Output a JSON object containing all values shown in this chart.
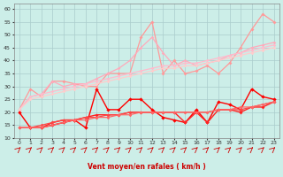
{
  "xlabel": "Vent moyen/en rafales ( km/h )",
  "xlim": [
    -0.5,
    23.5
  ],
  "ylim": [
    10,
    62
  ],
  "yticks": [
    10,
    15,
    20,
    25,
    30,
    35,
    40,
    45,
    50,
    55,
    60
  ],
  "xticks": [
    0,
    1,
    2,
    3,
    4,
    5,
    6,
    7,
    8,
    9,
    10,
    11,
    12,
    13,
    14,
    15,
    16,
    17,
    18,
    19,
    20,
    21,
    22,
    23
  ],
  "bg_color": "#cceee8",
  "grid_color": "#aacccc",
  "series": [
    {
      "x": [
        0,
        1,
        2,
        3,
        4,
        5,
        6,
        7,
        8,
        9,
        10,
        11,
        12,
        13,
        14,
        15,
        16,
        17,
        18,
        19,
        20,
        21,
        22,
        23
      ],
      "y": [
        21,
        29,
        26,
        32,
        32,
        31,
        30,
        30,
        35,
        35,
        35,
        49,
        55,
        35,
        40,
        35,
        36,
        38,
        35,
        39,
        45,
        52,
        58,
        55
      ],
      "color": "#ff9999",
      "lw": 0.9,
      "marker": "D",
      "ms": 2.0
    },
    {
      "x": [
        0,
        1,
        2,
        3,
        4,
        5,
        6,
        7,
        8,
        9,
        10,
        11,
        12,
        13,
        14,
        15,
        16,
        17,
        18,
        19,
        20,
        21,
        22,
        23
      ],
      "y": [
        21,
        26,
        27,
        32,
        30,
        31,
        31,
        33,
        35,
        37,
        40,
        45,
        49,
        43,
        38,
        40,
        38,
        39,
        40,
        42,
        43,
        45,
        46,
        47
      ],
      "color": "#ffaabb",
      "lw": 0.9,
      "marker": "D",
      "ms": 1.8
    },
    {
      "x": [
        0,
        1,
        2,
        3,
        4,
        5,
        6,
        7,
        8,
        9,
        10,
        11,
        12,
        13,
        14,
        15,
        16,
        17,
        18,
        19,
        20,
        21,
        22,
        23
      ],
      "y": [
        21,
        26,
        27,
        28,
        29,
        30,
        31,
        32,
        33,
        34,
        35,
        36,
        37,
        38,
        38,
        39,
        39,
        40,
        41,
        42,
        43,
        44,
        45,
        46
      ],
      "color": "#ffbbcc",
      "lw": 0.9,
      "marker": "D",
      "ms": 1.8
    },
    {
      "x": [
        0,
        1,
        2,
        3,
        4,
        5,
        6,
        7,
        8,
        9,
        10,
        11,
        12,
        13,
        14,
        15,
        16,
        17,
        18,
        19,
        20,
        21,
        22,
        23
      ],
      "y": [
        21,
        25,
        26,
        27,
        28,
        29,
        30,
        31,
        32,
        33,
        34,
        35,
        36,
        37,
        37,
        38,
        38,
        39,
        40,
        41,
        42,
        43,
        44,
        45
      ],
      "color": "#ffcccc",
      "lw": 0.9,
      "marker": "D",
      "ms": 1.8
    },
    {
      "x": [
        0,
        1,
        2,
        3,
        4,
        5,
        6,
        7,
        8,
        9,
        10,
        11,
        12,
        13,
        14,
        15,
        16,
        17,
        18,
        19,
        20,
        21,
        22,
        23
      ],
      "y": [
        20,
        14,
        14,
        15,
        16,
        17,
        14,
        29,
        21,
        21,
        25,
        25,
        21,
        18,
        17,
        16,
        21,
        16,
        24,
        23,
        21,
        29,
        26,
        25
      ],
      "color": "#ff0000",
      "lw": 1.0,
      "marker": "D",
      "ms": 2.2
    },
    {
      "x": [
        0,
        1,
        2,
        3,
        4,
        5,
        6,
        7,
        8,
        9,
        10,
        11,
        12,
        13,
        14,
        15,
        16,
        17,
        18,
        19,
        20,
        21,
        22,
        23
      ],
      "y": [
        14,
        14,
        14,
        16,
        17,
        17,
        18,
        19,
        19,
        19,
        20,
        20,
        20,
        20,
        20,
        16,
        20,
        16,
        21,
        21,
        20,
        22,
        22,
        24
      ],
      "color": "#ff2222",
      "lw": 1.0,
      "marker": "D",
      "ms": 2.0
    },
    {
      "x": [
        0,
        1,
        2,
        3,
        4,
        5,
        6,
        7,
        8,
        9,
        10,
        11,
        12,
        13,
        14,
        15,
        16,
        17,
        18,
        19,
        20,
        21,
        22,
        23
      ],
      "y": [
        14,
        14,
        15,
        16,
        17,
        17,
        18,
        18,
        19,
        19,
        20,
        20,
        20,
        20,
        20,
        20,
        20,
        20,
        21,
        21,
        21,
        22,
        23,
        24
      ],
      "color": "#ff4444",
      "lw": 0.9,
      "marker": "D",
      "ms": 1.8
    },
    {
      "x": [
        0,
        1,
        2,
        3,
        4,
        5,
        6,
        7,
        8,
        9,
        10,
        11,
        12,
        13,
        14,
        15,
        16,
        17,
        18,
        19,
        20,
        21,
        22,
        23
      ],
      "y": [
        14,
        14,
        14,
        15,
        16,
        17,
        17,
        18,
        18,
        19,
        19,
        20,
        20,
        20,
        20,
        20,
        20,
        20,
        21,
        21,
        22,
        22,
        23,
        24
      ],
      "color": "#ff6666",
      "lw": 0.9,
      "marker": "D",
      "ms": 1.8
    }
  ],
  "arrow_color": "#cc0000"
}
